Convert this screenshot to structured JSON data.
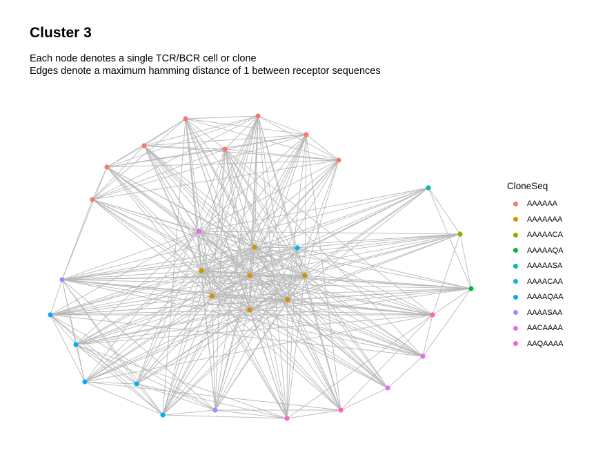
{
  "title": "Cluster 3",
  "subtitle": [
    "Each node denotes a single TCR/BCR cell or clone",
    "Edges denote a maximum hamming distance of 1 between receptor sequences"
  ],
  "legend": {
    "title": "CloneSeq",
    "items": [
      {
        "label": "AAAAAA",
        "color": "#F8766D"
      },
      {
        "label": "AAAAAAA",
        "color": "#D39200"
      },
      {
        "label": "AAAAACA",
        "color": "#93AA00"
      },
      {
        "label": "AAAAAQA",
        "color": "#00BA38"
      },
      {
        "label": "AAAAASA",
        "color": "#00C19F"
      },
      {
        "label": "AAAACAA",
        "color": "#00B9E3"
      },
      {
        "label": "AAAAQAA",
        "color": "#00B0F6"
      },
      {
        "label": "AAAASAA",
        "color": "#9590FF"
      },
      {
        "label": "AACAAAA",
        "color": "#E76BF3"
      },
      {
        "label": "AAQAAAA",
        "color": "#FF62BC"
      }
    ]
  }
}
